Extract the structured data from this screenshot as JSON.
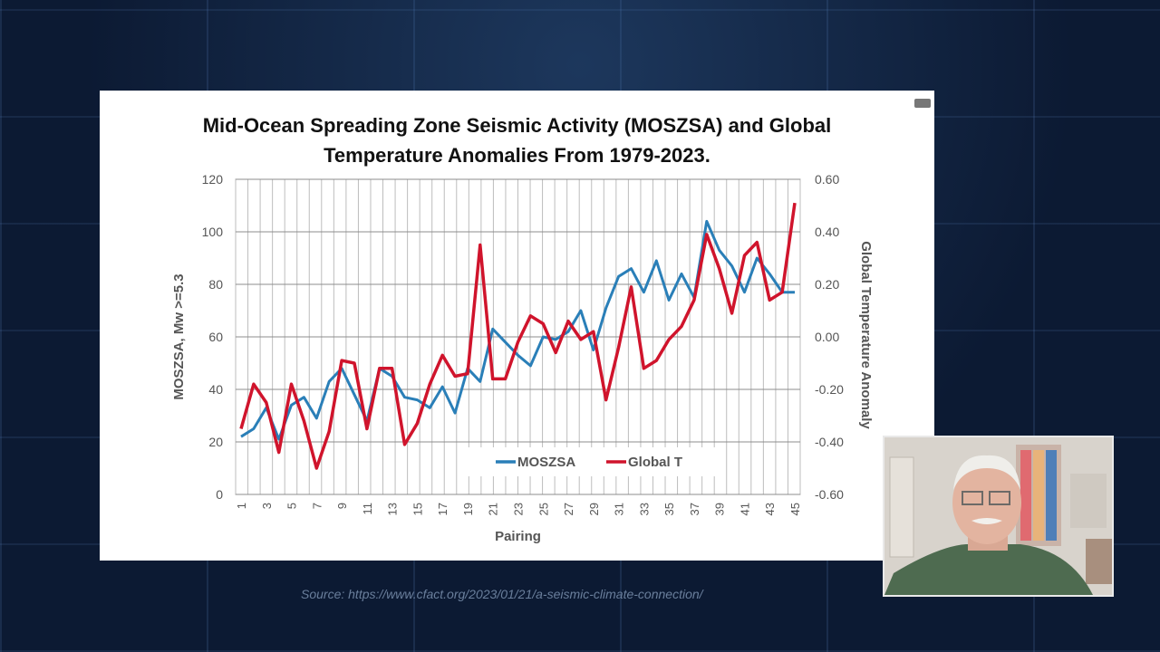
{
  "slide": {
    "source_text": "Source: https://www.cfact.org/2023/01/21/a-seismic-climate-connection/"
  },
  "chart_data": {
    "type": "line",
    "title_lines": [
      "Mid-Ocean Spreading Zone Seismic Activity (MOSZSA) and Global",
      "Temperature Anomalies From 1979-2023."
    ],
    "xlabel": "Pairing",
    "ylabel_left": "MOSZSA, Mw >=5.3",
    "ylabel_right": "Global Temperature Anomaly",
    "x": [
      1,
      2,
      3,
      4,
      5,
      6,
      7,
      8,
      9,
      10,
      11,
      12,
      13,
      14,
      15,
      16,
      17,
      18,
      19,
      20,
      21,
      22,
      23,
      24,
      25,
      26,
      27,
      28,
      29,
      30,
      31,
      32,
      33,
      34,
      35,
      36,
      37,
      38,
      39,
      40,
      41,
      42,
      43,
      44,
      45
    ],
    "x_tick_labels": [
      "1",
      "3",
      "5",
      "7",
      "9",
      "11",
      "13",
      "15",
      "17",
      "19",
      "21",
      "23",
      "25",
      "27",
      "29",
      "31",
      "33",
      "35",
      "37",
      "39",
      "41",
      "43",
      "45"
    ],
    "ylim_left": [
      0,
      120
    ],
    "yticks_left": [
      0,
      20,
      40,
      60,
      80,
      100,
      120
    ],
    "ylim_right": [
      -0.6,
      0.6
    ],
    "yticks_right": [
      "0.60",
      "0.40",
      "0.20",
      "0.00",
      "-0.20",
      "-0.40",
      "-0.60"
    ],
    "yticks_right_values": [
      0.6,
      0.4,
      0.2,
      0.0,
      -0.2,
      -0.4,
      -0.6
    ],
    "grid": true,
    "legend_position": "bottom-right",
    "series": [
      {
        "name": "MOSZSA",
        "axis": "left",
        "color": "#2a7fb8",
        "values": [
          22,
          25,
          33,
          21,
          34,
          37,
          29,
          43,
          48,
          38,
          28,
          48,
          45,
          37,
          36,
          33,
          41,
          31,
          48,
          43,
          63,
          58,
          53,
          49,
          60,
          59,
          62,
          70,
          55,
          71,
          83,
          86,
          77,
          89,
          74,
          84,
          75,
          104,
          93,
          87,
          77,
          90,
          84,
          77,
          77
        ]
      },
      {
        "name": "Global T",
        "axis": "right",
        "color": "#d0142c",
        "values": [
          -0.35,
          -0.18,
          -0.25,
          -0.44,
          -0.18,
          -0.32,
          -0.5,
          -0.36,
          -0.09,
          -0.1,
          -0.35,
          -0.12,
          -0.12,
          -0.41,
          -0.33,
          -0.18,
          -0.07,
          -0.15,
          -0.14,
          0.35,
          -0.16,
          -0.16,
          -0.02,
          0.08,
          0.05,
          -0.06,
          0.06,
          -0.01,
          0.02,
          -0.24,
          -0.04,
          0.19,
          -0.12,
          -0.09,
          -0.01,
          0.04,
          0.14,
          0.39,
          0.26,
          0.09,
          0.31,
          0.36,
          0.14,
          0.17,
          0.51
        ]
      }
    ]
  },
  "colors": {
    "background": "#0c1a33",
    "slide": "#ffffff",
    "moszsa": "#2a7fb8",
    "global_t": "#d0142c"
  },
  "icons": {
    "slide_corner": "minimize-icon",
    "webcam": "presenter-video"
  }
}
